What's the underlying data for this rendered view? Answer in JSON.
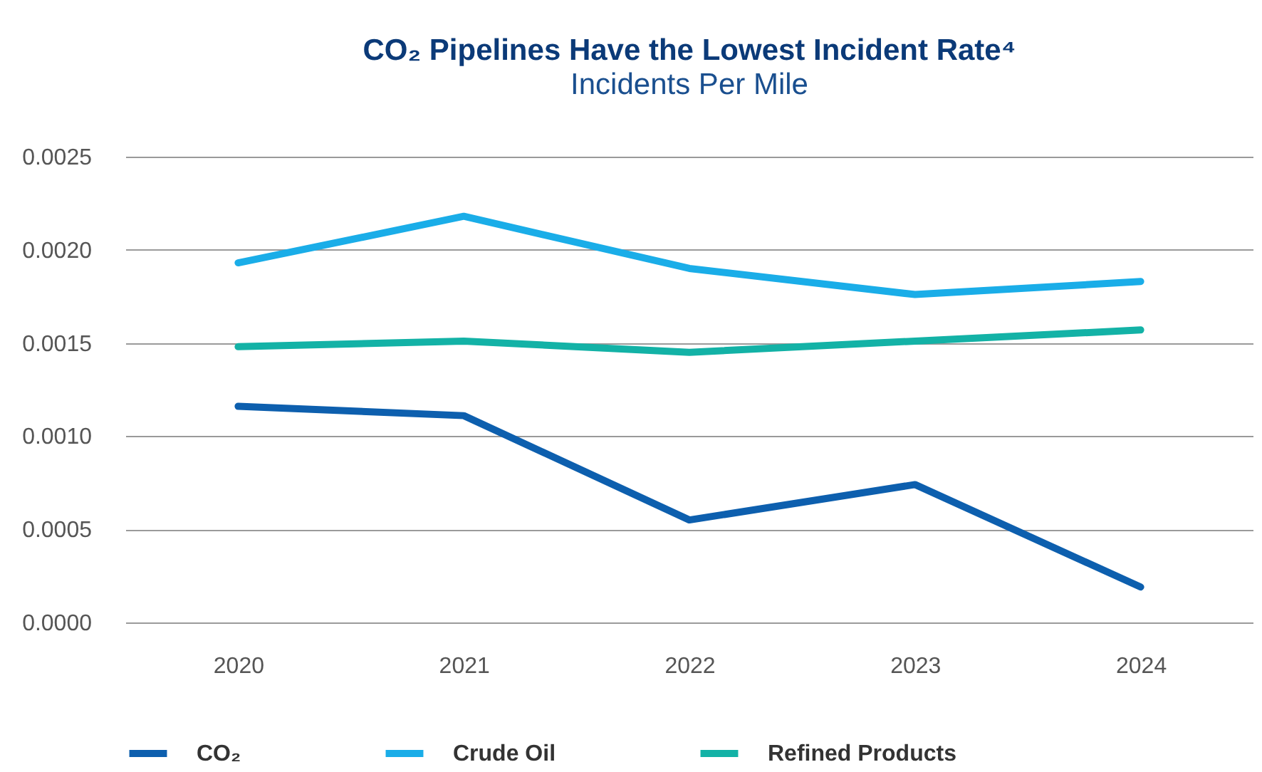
{
  "chart_data": {
    "type": "line",
    "title": "CO₂ Pipelines Have the Lowest Incident Rate⁴",
    "subtitle": "Incidents Per Mile",
    "categories": [
      "2020",
      "2021",
      "2022",
      "2023",
      "2024"
    ],
    "series": [
      {
        "name": "CO₂",
        "color": "#0d5fae",
        "values": [
          0.00116,
          0.00111,
          0.00055,
          0.00074,
          0.00019
        ]
      },
      {
        "name": "Crude Oil",
        "color": "#1aade8",
        "values": [
          0.00193,
          0.00218,
          0.0019,
          0.00176,
          0.00183
        ]
      },
      {
        "name": "Refined Products",
        "color": "#13b2a6",
        "values": [
          0.00148,
          0.00151,
          0.00145,
          0.00151,
          0.00157
        ]
      }
    ],
    "ylim": [
      0,
      0.0025
    ],
    "yticks": [
      {
        "value": 0,
        "label": "0.0000"
      },
      {
        "value": 0.0005,
        "label": "0.0005"
      },
      {
        "value": 0.001,
        "label": "0.0010"
      },
      {
        "value": 0.0015,
        "label": "0.0015"
      },
      {
        "value": 0.002,
        "label": "0.0020"
      },
      {
        "value": 0.0025,
        "label": "0.0025"
      }
    ],
    "grid": "y",
    "legend": "bottom",
    "marker": "none",
    "line_style": "solid"
  }
}
